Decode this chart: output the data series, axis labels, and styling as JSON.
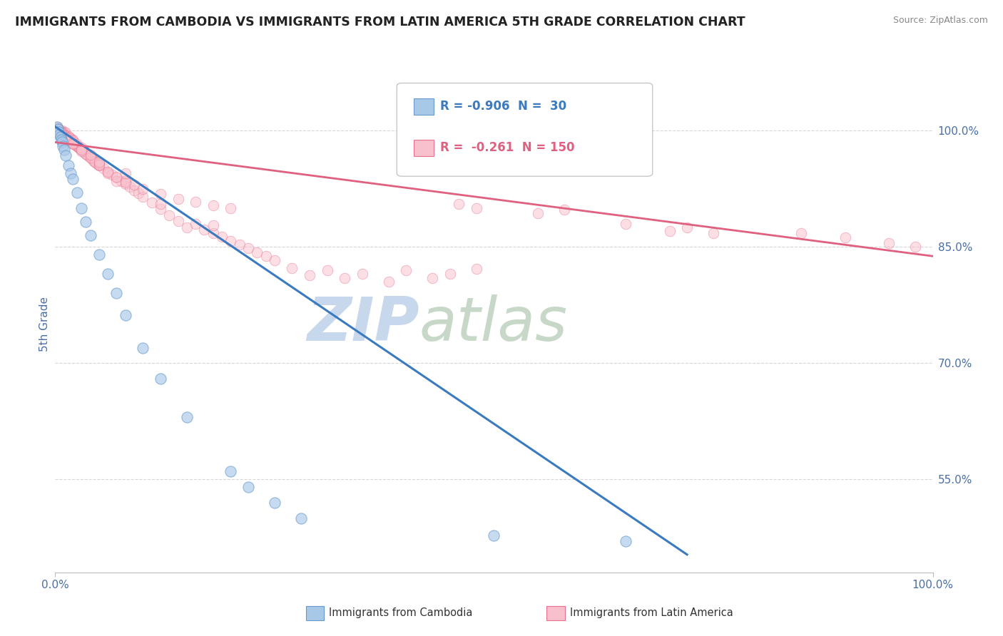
{
  "title": "IMMIGRANTS FROM CAMBODIA VS IMMIGRANTS FROM LATIN AMERICA 5TH GRADE CORRELATION CHART",
  "source": "Source: ZipAtlas.com",
  "ylabel": "5th Grade",
  "yticks": [
    0.55,
    0.7,
    0.85,
    1.0
  ],
  "ytick_labels": [
    "55.0%",
    "70.0%",
    "85.0%",
    "100.0%"
  ],
  "xmin": 0.0,
  "xmax": 1.0,
  "ymin": 0.43,
  "ymax": 1.07,
  "r_cambodia": "-0.906",
  "n_cambodia": "30",
  "r_latam": "-0.261",
  "n_latam": "150",
  "scatter_cambodia": {
    "color": "#a8c8e8",
    "edge_color": "#6699cc",
    "size": 120,
    "alpha": 0.65,
    "x": [
      0.002,
      0.003,
      0.004,
      0.005,
      0.006,
      0.007,
      0.008,
      0.009,
      0.01,
      0.012,
      0.015,
      0.018,
      0.02,
      0.025,
      0.03,
      0.035,
      0.04,
      0.05,
      0.06,
      0.07,
      0.08,
      0.1,
      0.12,
      0.15,
      0.2,
      0.22,
      0.25,
      0.28,
      0.5,
      0.65
    ],
    "y": [
      1.005,
      1.002,
      0.998,
      0.995,
      0.992,
      0.988,
      0.985,
      0.98,
      0.975,
      0.968,
      0.955,
      0.945,
      0.938,
      0.92,
      0.9,
      0.882,
      0.865,
      0.84,
      0.815,
      0.79,
      0.762,
      0.72,
      0.68,
      0.63,
      0.56,
      0.54,
      0.52,
      0.5,
      0.478,
      0.47
    ]
  },
  "scatter_latam": {
    "color": "#f8c0cc",
    "edge_color": "#e87090",
    "size": 110,
    "alpha": 0.5,
    "x": [
      0.002,
      0.003,
      0.004,
      0.005,
      0.006,
      0.007,
      0.008,
      0.008,
      0.009,
      0.01,
      0.01,
      0.011,
      0.012,
      0.012,
      0.013,
      0.014,
      0.015,
      0.015,
      0.016,
      0.017,
      0.018,
      0.018,
      0.019,
      0.02,
      0.02,
      0.021,
      0.022,
      0.023,
      0.024,
      0.025,
      0.026,
      0.027,
      0.028,
      0.029,
      0.03,
      0.032,
      0.034,
      0.036,
      0.038,
      0.04,
      0.042,
      0.044,
      0.046,
      0.048,
      0.05,
      0.055,
      0.06,
      0.065,
      0.07,
      0.075,
      0.08,
      0.085,
      0.09,
      0.095,
      0.1,
      0.11,
      0.12,
      0.13,
      0.14,
      0.15,
      0.16,
      0.17,
      0.18,
      0.19,
      0.2,
      0.21,
      0.22,
      0.23,
      0.24,
      0.25,
      0.27,
      0.29,
      0.31,
      0.33,
      0.35,
      0.38,
      0.4,
      0.43,
      0.45,
      0.48,
      0.003,
      0.005,
      0.007,
      0.009,
      0.011,
      0.013,
      0.015,
      0.017,
      0.019,
      0.021,
      0.023,
      0.025,
      0.027,
      0.03,
      0.035,
      0.04,
      0.045,
      0.05,
      0.06,
      0.07,
      0.004,
      0.006,
      0.008,
      0.012,
      0.016,
      0.02,
      0.025,
      0.03,
      0.04,
      0.05,
      0.06,
      0.07,
      0.08,
      0.09,
      0.1,
      0.12,
      0.14,
      0.16,
      0.18,
      0.2,
      0.004,
      0.006,
      0.01,
      0.015,
      0.02,
      0.03,
      0.05,
      0.08,
      0.12,
      0.18,
      0.004,
      0.006,
      0.008,
      0.012,
      0.02,
      0.03,
      0.05,
      0.08,
      0.58,
      0.72,
      0.85,
      0.9,
      0.95,
      0.98,
      0.55,
      0.65,
      0.75,
      0.46,
      0.48,
      0.7
    ],
    "y": [
      1.005,
      1.003,
      1.002,
      1.0,
      0.999,
      0.998,
      0.997,
      1.0,
      0.996,
      0.995,
      0.998,
      0.994,
      0.993,
      0.997,
      0.992,
      0.991,
      0.99,
      0.993,
      0.989,
      0.988,
      0.987,
      0.99,
      0.986,
      0.985,
      0.988,
      0.984,
      0.983,
      0.982,
      0.981,
      0.98,
      0.979,
      0.978,
      0.977,
      0.976,
      0.975,
      0.973,
      0.971,
      0.969,
      0.967,
      0.965,
      0.963,
      0.961,
      0.959,
      0.957,
      0.955,
      0.951,
      0.947,
      0.943,
      0.939,
      0.935,
      0.931,
      0.927,
      0.923,
      0.919,
      0.915,
      0.907,
      0.899,
      0.891,
      0.883,
      0.875,
      0.88,
      0.872,
      0.868,
      0.863,
      0.858,
      0.853,
      0.848,
      0.843,
      0.838,
      0.833,
      0.823,
      0.813,
      0.82,
      0.81,
      0.815,
      0.805,
      0.82,
      0.81,
      0.815,
      0.822,
      1.002,
      1.0,
      0.998,
      0.996,
      0.994,
      0.992,
      0.99,
      0.988,
      0.986,
      0.984,
      0.982,
      0.98,
      0.978,
      0.975,
      0.97,
      0.965,
      0.96,
      0.955,
      0.945,
      0.935,
      1.001,
      0.999,
      0.997,
      0.994,
      0.991,
      0.987,
      0.983,
      0.978,
      0.969,
      0.958,
      0.947,
      0.94,
      0.935,
      0.93,
      0.925,
      0.918,
      0.912,
      0.908,
      0.904,
      0.9,
      0.999,
      0.997,
      0.993,
      0.988,
      0.983,
      0.973,
      0.956,
      0.933,
      0.905,
      0.878,
      0.999,
      0.997,
      0.995,
      0.991,
      0.984,
      0.975,
      0.96,
      0.945,
      0.898,
      0.875,
      0.868,
      0.862,
      0.855,
      0.85,
      0.893,
      0.88,
      0.868,
      0.905,
      0.9,
      0.87
    ]
  },
  "regression_cambodia": {
    "x_start": 0.0,
    "y_start": 1.005,
    "x_end": 0.72,
    "y_end": 0.453,
    "color": "#3a7abf",
    "linewidth": 2.2
  },
  "regression_latam": {
    "x_start": 0.0,
    "y_start": 0.985,
    "x_end": 1.0,
    "y_end": 0.838,
    "color": "#e06080",
    "linewidth": 2.0
  },
  "grid_color": "#cccccc",
  "grid_style": "--",
  "grid_alpha": 0.8,
  "bg_color": "#ffffff",
  "watermark_zip": "ZIP",
  "watermark_atlas": "atlas",
  "watermark_color_zip": "#c8d8ec",
  "watermark_color_atlas": "#c8d8c8",
  "title_color": "#222222",
  "axis_label_color": "#4a6fa5",
  "tick_color": "#4a6fa5",
  "source_color": "#888888",
  "legend_border_color": "#bbbbbb",
  "bottom_legend_items": [
    {
      "label": "Immigrants from Cambodia",
      "color": "#a8c8e8",
      "edge": "#6699cc"
    },
    {
      "label": "Immigrants from Latin America",
      "color": "#f8c0cc",
      "edge": "#e87090"
    }
  ]
}
